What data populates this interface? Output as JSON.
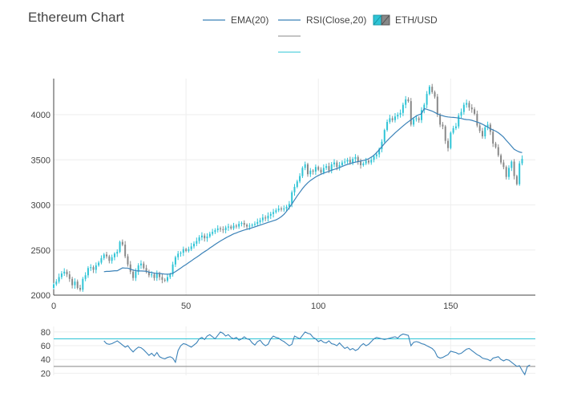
{
  "chart_data": [
    {
      "type": "candlestick",
      "title": "Ethereum Chart",
      "legend": {
        "placement": "top",
        "entries": [
          {
            "name": "EMA(20)",
            "color": "#3b82b8",
            "kind": "line"
          },
          {
            "name": "RSI(Close,20)",
            "color": "#3b82b8",
            "kind": "line"
          },
          {
            "name": "ETH/USD",
            "kind": "candle",
            "increasing_color": "#2ec4d6",
            "decreasing_color": "#888888"
          }
        ],
        "extra_lines": [
          {
            "color": "#888888"
          },
          {
            "color": "#2ec4d6"
          }
        ]
      },
      "xlim": [
        0,
        182
      ],
      "ylim": [
        2000,
        4400
      ],
      "x_ticks": [
        0,
        50,
        100,
        150
      ],
      "y_ticks": [
        2000,
        2500,
        3000,
        3500,
        4000
      ],
      "grid": true,
      "closes": [
        2120,
        2150,
        2200,
        2240,
        2260,
        2230,
        2180,
        2110,
        2150,
        2080,
        2060,
        2180,
        2220,
        2300,
        2310,
        2280,
        2330,
        2360,
        2410,
        2450,
        2430,
        2380,
        2420,
        2460,
        2480,
        2590,
        2560,
        2430,
        2340,
        2260,
        2190,
        2260,
        2330,
        2350,
        2300,
        2260,
        2220,
        2230,
        2190,
        2240,
        2200,
        2170,
        2160,
        2200,
        2230,
        2340,
        2420,
        2460,
        2470,
        2510,
        2490,
        2510,
        2540,
        2570,
        2600,
        2640,
        2660,
        2630,
        2650,
        2680,
        2700,
        2720,
        2740,
        2730,
        2720,
        2750,
        2760,
        2740,
        2770,
        2760,
        2790,
        2800,
        2780,
        2760,
        2770,
        2780,
        2790,
        2810,
        2830,
        2860,
        2850,
        2880,
        2900,
        2920,
        2940,
        2960,
        2950,
        2960,
        2980,
        3010,
        3140,
        3200,
        3260,
        3320,
        3410,
        3450,
        3340,
        3380,
        3370,
        3420,
        3390,
        3360,
        3410,
        3430,
        3380,
        3450,
        3470,
        3420,
        3440,
        3470,
        3480,
        3500,
        3470,
        3510,
        3530,
        3480,
        3440,
        3460,
        3490,
        3470,
        3500,
        3540,
        3560,
        3620,
        3700,
        3830,
        3920,
        3960,
        3940,
        3980,
        4000,
        4020,
        4110,
        4170,
        4150,
        3890,
        3950,
        3960,
        3940,
        4050,
        4110,
        4230,
        4310,
        4250,
        4200,
        4000,
        3890,
        3870,
        3710,
        3630,
        3800,
        3850,
        3870,
        3990,
        4030,
        4110,
        4130,
        4080,
        4060,
        4010,
        3880,
        3820,
        3760,
        3860,
        3890,
        3810,
        3680,
        3640,
        3550,
        3470,
        3420,
        3310,
        3410,
        3480,
        3320,
        3230,
        3460,
        3510
      ],
      "ema": [
        null,
        null,
        null,
        null,
        null,
        null,
        null,
        null,
        null,
        null,
        null,
        null,
        null,
        null,
        null,
        null,
        null,
        null,
        null,
        2260,
        2263,
        2263,
        2267,
        2270,
        2270,
        2286,
        2302,
        2300,
        2300,
        2288,
        2278,
        2270,
        2268,
        2268,
        2267,
        2264,
        2255,
        2251,
        2244,
        2242,
        2240,
        2236,
        2233,
        2232,
        2234,
        2244,
        2260,
        2280,
        2300,
        2321,
        2339,
        2360,
        2380,
        2401,
        2420,
        2440,
        2462,
        2482,
        2500,
        2522,
        2541,
        2562,
        2581,
        2600,
        2617,
        2634,
        2650,
        2664,
        2679,
        2690,
        2702,
        2712,
        2722,
        2730,
        2738,
        2748,
        2756,
        2766,
        2776,
        2786,
        2796,
        2806,
        2815,
        2825,
        2834,
        2850,
        2870,
        2895,
        2930,
        2970,
        3010,
        3055,
        3100,
        3140,
        3180,
        3215,
        3245,
        3270,
        3290,
        3310,
        3326,
        3340,
        3352,
        3363,
        3372,
        3384,
        3394,
        3403,
        3414,
        3426,
        3438,
        3449,
        3459,
        3467,
        3474,
        3480,
        3486,
        3492,
        3500,
        3512,
        3530,
        3550,
        3580,
        3612,
        3646,
        3680,
        3712,
        3742,
        3770,
        3798,
        3824,
        3850,
        3875,
        3900,
        3922,
        3943,
        3965,
        3985,
        4000,
        4010,
        4068,
        4060,
        4050,
        4040,
        4025,
        4010,
        3997,
        3988,
        3980,
        3975,
        3972,
        3970,
        3967,
        3963,
        3958,
        3950,
        3946,
        3944,
        3938,
        3928,
        3918,
        3908,
        3894,
        3878,
        3862,
        3844,
        3830,
        3818,
        3800,
        3777,
        3750,
        3716,
        3684,
        3650,
        3616,
        3600,
        3587,
        3580
      ],
      "axis_style": {
        "text_color": "#444444",
        "grid_color": "#eeeeee"
      }
    },
    {
      "type": "line",
      "name": "RSI panel",
      "xlim": [
        0,
        182
      ],
      "ylim": [
        17,
        88
      ],
      "y_ticks": [
        20,
        40,
        60,
        80
      ],
      "reference_lines": [
        {
          "value": 70,
          "color": "#2ec4d6"
        },
        {
          "value": 30,
          "color": "#888888"
        }
      ],
      "rsi": [
        null,
        null,
        null,
        null,
        null,
        null,
        null,
        null,
        null,
        null,
        null,
        null,
        null,
        null,
        null,
        null,
        null,
        null,
        null,
        67,
        63,
        62,
        63,
        65,
        67,
        64,
        61,
        58,
        60,
        55,
        51,
        55,
        58,
        57,
        54,
        50,
        46,
        49,
        45,
        50,
        44,
        42,
        41,
        43,
        44,
        42,
        36,
        53,
        60,
        63,
        62,
        60,
        58,
        61,
        64,
        70,
        72,
        69,
        74,
        76,
        73,
        70,
        75,
        80,
        78,
        74,
        76,
        72,
        70,
        72,
        68,
        70,
        73,
        70,
        69,
        64,
        61,
        66,
        68,
        63,
        60,
        62,
        70,
        74,
        72,
        71,
        68,
        66,
        63,
        60,
        62,
        74,
        72,
        70,
        75,
        80,
        78,
        77,
        72,
        70,
        66,
        68,
        65,
        64,
        67,
        63,
        62,
        60,
        64,
        60,
        56,
        58,
        54,
        56,
        53,
        55,
        60,
        63,
        60,
        62,
        66,
        70,
        72,
        71,
        70,
        69,
        70,
        71,
        72,
        73,
        71,
        75,
        77,
        76,
        75,
        60,
        65,
        66,
        65,
        63,
        62,
        60,
        58,
        56,
        52,
        44,
        42,
        43,
        45,
        47,
        52,
        51,
        50,
        48,
        49,
        52,
        55,
        56,
        53,
        50,
        47,
        45,
        42,
        41,
        40,
        38,
        42,
        43,
        44,
        40,
        38,
        40,
        39,
        36,
        33,
        30,
        31,
        24,
        18,
        30,
        32
      ]
    }
  ]
}
